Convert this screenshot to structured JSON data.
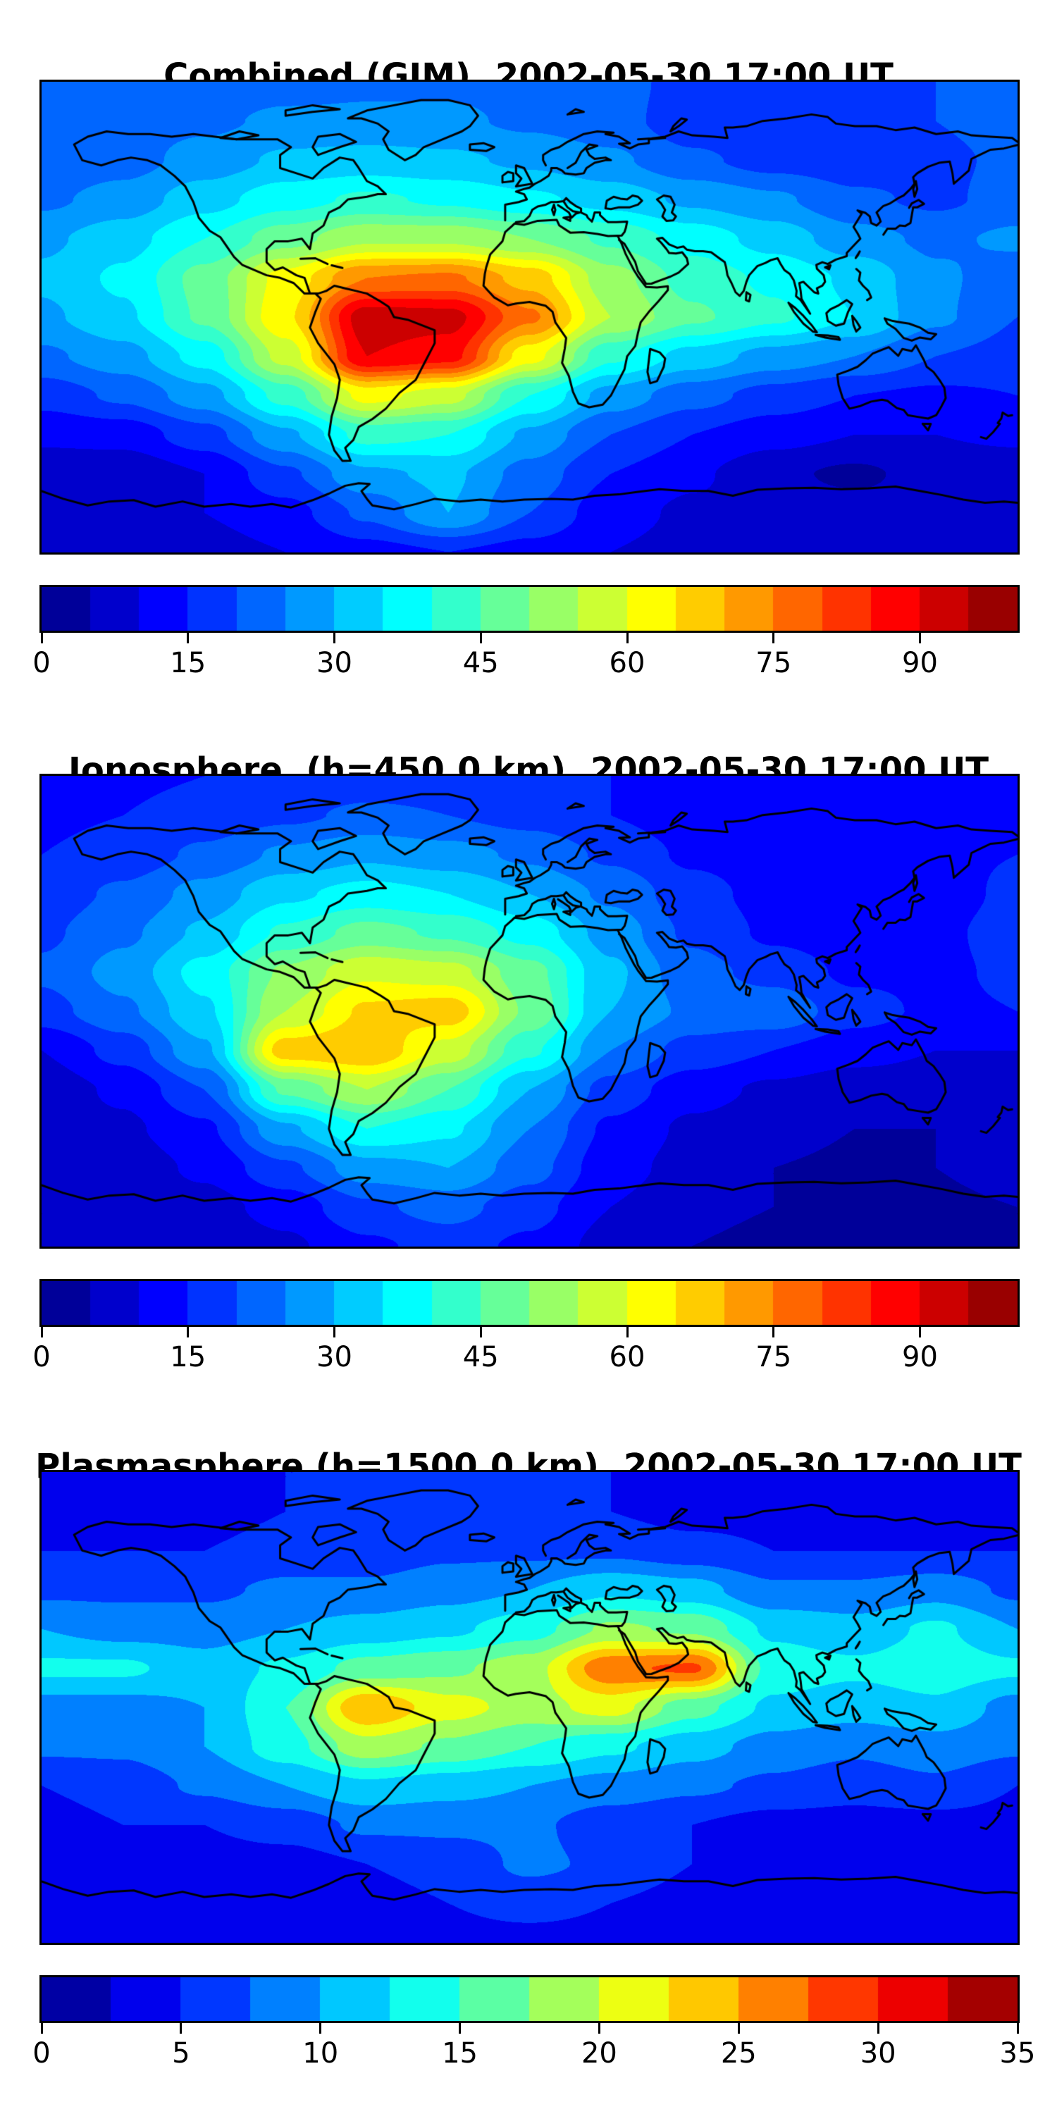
{
  "figure": {
    "background": "#ffffff",
    "panel_count": 3,
    "coastline_color": "#000000",
    "frame_color": "#000000"
  },
  "chart_data": [
    {
      "type": "heatmap",
      "subtype": "filled_contour_world_map",
      "title": "Combined (GIM), 2002-05-30 17:00 UT",
      "colormap": "jet",
      "vmin": 0,
      "vmax": 100,
      "levels": 20,
      "colorbar_ticks": [
        0,
        15,
        30,
        45,
        60,
        75,
        90
      ],
      "lon_range": [
        -180,
        180
      ],
      "lat_range": [
        -90,
        90
      ],
      "overlay": "coastlines",
      "legend": "none",
      "grid_lon": [
        -180,
        -150,
        -120,
        -90,
        -60,
        -30,
        0,
        30,
        60,
        90,
        120,
        150,
        180
      ],
      "grid_lat": [
        90,
        75,
        60,
        45,
        30,
        15,
        0,
        -15,
        -30,
        -45,
        -60,
        -75,
        -90
      ],
      "values": [
        [
          22,
          22,
          22,
          23,
          24,
          24,
          23,
          22,
          18,
          16,
          18,
          20,
          22
        ],
        [
          22,
          23,
          24,
          26,
          26,
          26,
          24,
          22,
          17,
          15,
          17,
          20,
          22
        ],
        [
          21,
          23,
          27,
          31,
          32,
          31,
          29,
          26,
          21,
          18,
          17,
          19,
          21
        ],
        [
          24,
          27,
          33,
          38,
          41,
          39,
          36,
          33,
          29,
          26,
          21,
          19,
          22
        ],
        [
          29,
          33,
          40,
          48,
          54,
          54,
          50,
          44,
          38,
          33,
          27,
          24,
          26
        ],
        [
          31,
          36,
          47,
          62,
          75,
          76,
          68,
          52,
          43,
          39,
          34,
          26,
          22
        ],
        [
          29,
          34,
          46,
          64,
          93,
          92,
          76,
          55,
          46,
          41,
          35,
          26,
          20
        ],
        [
          24,
          28,
          37,
          57,
          90,
          87,
          62,
          41,
          33,
          28,
          25,
          20,
          18
        ],
        [
          17,
          21,
          28,
          42,
          62,
          57,
          40,
          28,
          22,
          18,
          15,
          14,
          15
        ],
        [
          11,
          12,
          18,
          29,
          42,
          40,
          29,
          20,
          15,
          12,
          10,
          10,
          11
        ],
        [
          7,
          6,
          10,
          19,
          29,
          31,
          23,
          15,
          11,
          6,
          4,
          7,
          7
        ],
        [
          8,
          8,
          10,
          13,
          21,
          30,
          20,
          12,
          9,
          8,
          7,
          7,
          8
        ],
        [
          8,
          8,
          8,
          10,
          13,
          15,
          13,
          10,
          8,
          8,
          8,
          8,
          8
        ]
      ]
    },
    {
      "type": "heatmap",
      "subtype": "filled_contour_world_map",
      "title": "Ionosphere  (h=450.0 km), 2002-05-30 17:00 UT",
      "colormap": "jet",
      "vmin": 0,
      "vmax": 100,
      "levels": 20,
      "colorbar_ticks": [
        0,
        15,
        30,
        45,
        60,
        75,
        90
      ],
      "lon_range": [
        -180,
        180
      ],
      "lat_range": [
        -90,
        90
      ],
      "overlay": "coastlines",
      "legend": "none",
      "grid_lon": [
        -180,
        -150,
        -120,
        -90,
        -60,
        -30,
        0,
        30,
        60,
        90,
        120,
        150,
        180
      ],
      "grid_lat": [
        90,
        75,
        60,
        45,
        30,
        15,
        0,
        -15,
        -30,
        -45,
        -60,
        -75,
        -90
      ],
      "values": [
        [
          14,
          14,
          15,
          16,
          17,
          17,
          16,
          15,
          13,
          12,
          12,
          13,
          14
        ],
        [
          14,
          15,
          17,
          19,
          21,
          20,
          18,
          15,
          12,
          11,
          12,
          13,
          14
        ],
        [
          15,
          17,
          21,
          26,
          29,
          27,
          24,
          19,
          14,
          12,
          12,
          14,
          15
        ],
        [
          17,
          21,
          27,
          34,
          37,
          35,
          30,
          24,
          17,
          13,
          12,
          13,
          16
        ],
        [
          19,
          24,
          31,
          41,
          47,
          44,
          38,
          28,
          19,
          14,
          12,
          14,
          17
        ],
        [
          21,
          27,
          37,
          51,
          59,
          57,
          47,
          31,
          22,
          18,
          14,
          14,
          16
        ],
        [
          18,
          24,
          34,
          55,
          66,
          68,
          49,
          30,
          24,
          24,
          17,
          14,
          15
        ],
        [
          10,
          17,
          29,
          68,
          70,
          58,
          41,
          25,
          18,
          15,
          12,
          10,
          10
        ],
        [
          7,
          11,
          20,
          46,
          55,
          45,
          30,
          18,
          12,
          9,
          7,
          7,
          7
        ],
        [
          7,
          9,
          14,
          29,
          40,
          36,
          25,
          14,
          9,
          7,
          5,
          5,
          7
        ],
        [
          7,
          7,
          11,
          19,
          28,
          30,
          22,
          12,
          8,
          5,
          4,
          5,
          7
        ],
        [
          5,
          6,
          8,
          12,
          19,
          22,
          17,
          10,
          6,
          5,
          4,
          4,
          5
        ],
        [
          5,
          5,
          6,
          9,
          14,
          17,
          14,
          8,
          5,
          4,
          4,
          4,
          5
        ]
      ]
    },
    {
      "type": "heatmap",
      "subtype": "filled_contour_world_map",
      "title": "Plasmasphere (h=1500.0 km), 2002-05-30 17:00 UT",
      "colormap": "jet",
      "vmin": 0,
      "vmax": 35,
      "levels": 14,
      "colorbar_ticks": [
        0,
        5,
        10,
        15,
        20,
        25,
        30,
        35
      ],
      "lon_range": [
        -180,
        180
      ],
      "lat_range": [
        -90,
        90
      ],
      "overlay": "coastlines",
      "legend": "none",
      "grid_lon": [
        -180,
        -150,
        -120,
        -90,
        -60,
        -30,
        0,
        30,
        60,
        90,
        120,
        150,
        180
      ],
      "grid_lat": [
        90,
        75,
        60,
        45,
        30,
        15,
        0,
        -15,
        -30,
        -45,
        -60,
        -75,
        -90
      ],
      "values": [
        [
          4,
          4,
          4,
          5,
          5,
          6,
          6,
          5,
          4,
          4,
          4,
          4,
          4
        ],
        [
          4,
          4,
          4,
          5,
          6,
          6,
          6,
          5,
          4,
          4,
          4,
          4,
          4
        ],
        [
          5,
          5,
          5,
          6,
          6,
          7,
          7,
          7,
          6,
          5,
          5,
          5,
          5
        ],
        [
          7,
          7,
          7,
          8,
          8,
          9,
          10,
          12,
          11,
          8,
          8,
          9,
          7
        ],
        [
          10,
          9,
          9,
          10,
          11,
          12,
          14,
          18,
          17,
          12,
          11,
          13,
          10
        ],
        [
          13,
          13,
          11,
          13,
          16,
          17,
          19,
          27,
          28,
          14,
          13,
          14,
          13
        ],
        [
          9,
          9,
          10,
          15,
          25,
          21,
          19,
          21,
          16,
          12,
          11,
          12,
          9
        ],
        [
          8,
          8,
          10,
          14,
          19,
          17,
          15,
          13,
          11,
          9,
          8,
          9,
          8
        ],
        [
          5,
          6,
          8,
          10,
          12,
          11,
          10,
          9,
          8,
          7,
          6,
          7,
          5
        ],
        [
          4,
          5,
          5,
          6,
          8,
          8,
          8,
          6,
          5,
          4,
          4,
          4,
          4
        ],
        [
          3,
          3,
          4,
          4,
          5,
          6,
          8,
          7,
          5,
          4,
          3,
          3,
          3
        ],
        [
          3,
          3,
          3,
          4,
          4,
          5,
          6,
          5,
          4,
          3,
          3,
          3,
          3
        ],
        [
          3,
          3,
          3,
          3,
          4,
          4,
          4,
          4,
          3,
          3,
          3,
          3,
          3
        ]
      ]
    }
  ]
}
